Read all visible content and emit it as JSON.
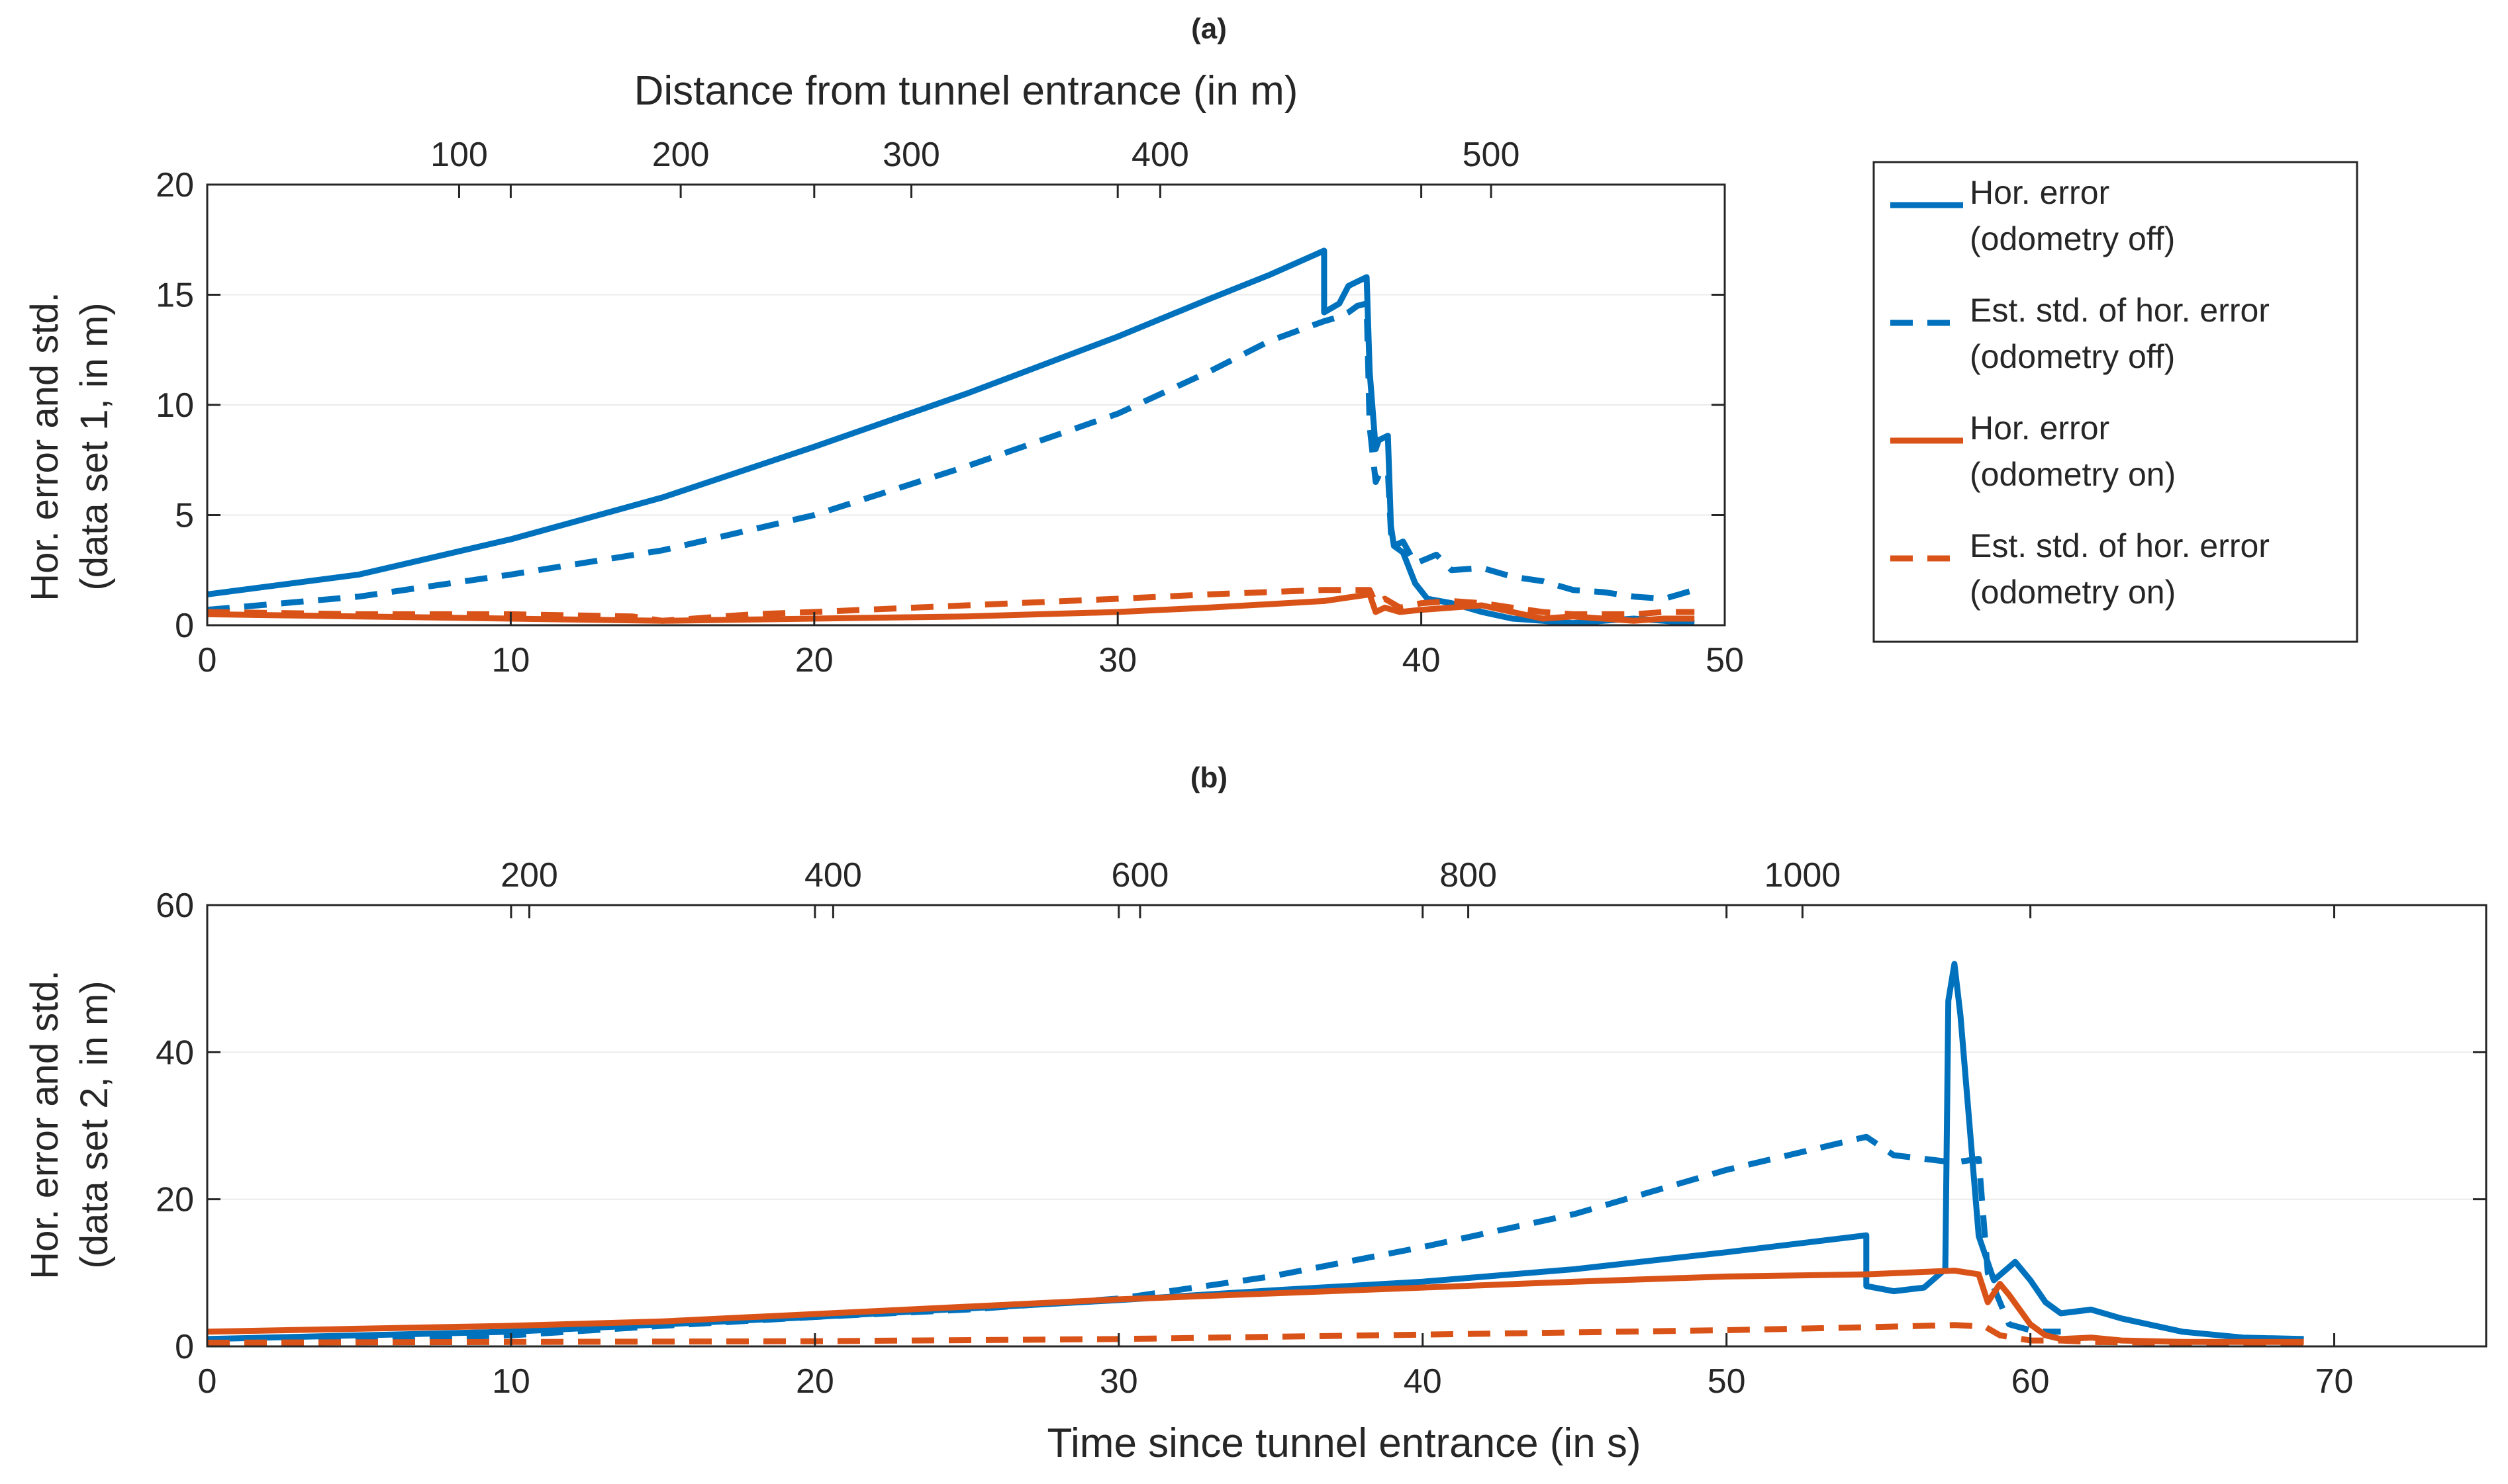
{
  "colors": {
    "blue": "#0072BD",
    "orange": "#D95319",
    "grid": "#ebebeb",
    "axis": "#262626"
  },
  "legend": {
    "entries": [
      {
        "series": "hor_off",
        "line1": "Hor. error",
        "line2": "(odometry off)",
        "color": "#0072BD",
        "dash": false
      },
      {
        "series": "std_off",
        "line1": "Est. std. of hor. error",
        "line2": "(odometry off)",
        "color": "#0072BD",
        "dash": true
      },
      {
        "series": "hor_on",
        "line1": "Hor. error",
        "line2": "(odometry on)",
        "color": "#D95319",
        "dash": false
      },
      {
        "series": "std_on",
        "line1": "Est. std. of hor. error",
        "line2": "(odometry on)",
        "color": "#D95319",
        "dash": true
      }
    ]
  },
  "chart_data": [
    {
      "type": "line",
      "panel": "a",
      "title": "(a)",
      "xlabel": "",
      "ylabel": [
        "Hor. error and std.",
        "(data set 1, in m)"
      ],
      "top_xlabel": "Distance from tunnel entrance (in m)",
      "xlim": [
        0,
        50
      ],
      "ylim": [
        0,
        20
      ],
      "xticks": [
        0,
        10,
        20,
        30,
        40,
        50
      ],
      "yticks": [
        0,
        5,
        10,
        15,
        20
      ],
      "top_ticks": [
        {
          "label": "100",
          "x": 8.3
        },
        {
          "label": "200",
          "x": 15.6
        },
        {
          "label": "300",
          "x": 23.2
        },
        {
          "label": "400",
          "x": 31.4
        },
        {
          "label": "500",
          "x": 42.3
        }
      ],
      "series": [
        {
          "name": "Hor. error (odometry off)",
          "key": "hor_off",
          "x": [
            0,
            5,
            10,
            15,
            20,
            25,
            30,
            33,
            35,
            36.8,
            36.8,
            37.3,
            37.6,
            37.9,
            38.2,
            38.3,
            38.5,
            38.6,
            38.9,
            39.0,
            39.1,
            39.4,
            39.8,
            40.2,
            41.0,
            42.0,
            43.0,
            44.0,
            45.0,
            46.0,
            47.0,
            48.0,
            49.0
          ],
          "y": [
            1.4,
            2.3,
            3.9,
            5.8,
            8.1,
            10.5,
            13.1,
            14.8,
            15.9,
            17.0,
            14.2,
            14.6,
            15.4,
            15.6,
            15.8,
            11.5,
            8.0,
            8.4,
            8.6,
            4.5,
            3.6,
            3.3,
            1.9,
            1.2,
            1.0,
            0.6,
            0.3,
            0.2,
            0.1,
            0.2,
            0.3,
            0.2,
            0.1
          ]
        },
        {
          "name": "Est. std. of hor. error (odometry off)",
          "key": "std_off",
          "x": [
            0,
            5,
            10,
            15,
            20,
            25,
            30,
            33,
            35,
            36.8,
            37.3,
            37.6,
            37.9,
            38.2,
            38.3,
            38.5,
            38.6,
            38.9,
            39.0,
            39.1,
            39.4,
            39.8,
            40.5,
            41.0,
            42.0,
            43.0,
            44.0,
            45.0,
            46.0,
            47.0,
            48.0,
            48.5,
            49.0
          ],
          "y": [
            0.7,
            1.3,
            2.3,
            3.4,
            5.0,
            7.2,
            9.6,
            11.5,
            12.9,
            13.8,
            14.0,
            14.2,
            14.5,
            14.6,
            9.0,
            6.5,
            6.8,
            7.0,
            4.2,
            3.6,
            3.8,
            2.8,
            3.2,
            2.5,
            2.6,
            2.2,
            2.0,
            1.6,
            1.5,
            1.3,
            1.2,
            1.4,
            1.6
          ]
        },
        {
          "name": "Hor. error (odometry on)",
          "key": "hor_on",
          "x": [
            0,
            5,
            10,
            15,
            20,
            25,
            30,
            33,
            36.8,
            38.3,
            38.5,
            38.8,
            39.3,
            40.0,
            41.0,
            42.0,
            43.0,
            44.0,
            45.0,
            46.0,
            47.0,
            48.0,
            49.0
          ],
          "y": [
            0.5,
            0.4,
            0.3,
            0.2,
            0.3,
            0.4,
            0.6,
            0.8,
            1.1,
            1.4,
            0.6,
            0.8,
            0.6,
            0.7,
            0.8,
            0.9,
            0.6,
            0.3,
            0.4,
            0.3,
            0.2,
            0.3,
            0.3
          ]
        },
        {
          "name": "Est. std. of hor. error (odometry on)",
          "key": "std_on",
          "x": [
            0,
            5,
            10,
            14,
            15,
            18,
            20,
            25,
            30,
            33,
            36.8,
            38.3,
            38.5,
            38.8,
            39.3,
            40.0,
            41.0,
            42.0,
            43.0,
            44.0,
            45.0,
            46.0,
            47.0,
            48.0,
            49.0
          ],
          "y": [
            0.6,
            0.5,
            0.5,
            0.4,
            0.2,
            0.5,
            0.6,
            0.9,
            1.2,
            1.4,
            1.6,
            1.6,
            1.0,
            1.2,
            0.8,
            1.0,
            1.1,
            1.0,
            0.8,
            0.6,
            0.5,
            0.5,
            0.5,
            0.6,
            0.6
          ]
        }
      ]
    },
    {
      "type": "line",
      "panel": "b",
      "title": "(b)",
      "xlabel": "Time since tunnel entrance (in s)",
      "ylabel": [
        "Hor. error and std.",
        "(data set 2, in m)"
      ],
      "top_xlabel": "",
      "xlim": [
        0,
        75
      ],
      "ylim": [
        0,
        60
      ],
      "xticks": [
        0,
        10,
        20,
        30,
        40,
        50,
        60,
        70
      ],
      "yticks": [
        0,
        20,
        40,
        60
      ],
      "top_ticks": [
        {
          "label": "200",
          "x": 10.6
        },
        {
          "label": "400",
          "x": 20.6
        },
        {
          "label": "600",
          "x": 30.7
        },
        {
          "label": "800",
          "x": 41.5
        },
        {
          "label": "1000",
          "x": 52.5
        }
      ],
      "series": [
        {
          "name": "Hor. error (odometry off)",
          "key": "hor_off",
          "x": [
            0,
            10,
            20,
            30,
            35,
            40,
            45,
            50,
            54.6,
            54.6,
            55.5,
            56.5,
            57.2,
            57.3,
            57.5,
            57.7,
            58.0,
            58.3,
            58.8,
            59.5,
            60.0,
            60.5,
            61.0,
            62.0,
            63.0,
            65.0,
            67.0,
            69.0
          ],
          "y": [
            1.0,
            2.0,
            4.0,
            6.3,
            7.6,
            8.8,
            10.5,
            12.8,
            15.1,
            8.2,
            7.5,
            8.0,
            10.5,
            47.0,
            52.0,
            45.0,
            30.0,
            15.0,
            9.0,
            11.5,
            9.0,
            6.0,
            4.5,
            5.0,
            3.8,
            2.0,
            1.2,
            1.0
          ]
        },
        {
          "name": "Est. std. of hor. error (odometry off)",
          "key": "std_off",
          "x": [
            0,
            10,
            15,
            20,
            25,
            30,
            35,
            40,
            45,
            50,
            54.6,
            55.5,
            56.5,
            57.5,
            58.3,
            58.6,
            58.8,
            59.3,
            60.0,
            60.5,
            61.0
          ],
          "y": [
            0.3,
            1.5,
            2.8,
            4.0,
            5.0,
            6.5,
            9.5,
            13.5,
            18.0,
            24.0,
            28.5,
            26.0,
            25.5,
            25.0,
            25.5,
            10.0,
            8.0,
            3.0,
            2.2,
            2.0,
            2.0
          ]
        },
        {
          "name": "Hor. error (odometry on)",
          "key": "hor_on",
          "x": [
            0,
            10,
            15,
            20,
            25,
            30,
            35,
            40,
            45,
            50,
            54.6,
            57.5,
            58.3,
            58.6,
            59.0,
            59.3,
            60.0,
            60.5,
            61.0,
            62.0,
            63.0,
            65.0,
            67.0,
            69.0
          ],
          "y": [
            2.0,
            2.8,
            3.4,
            4.4,
            5.4,
            6.4,
            7.2,
            8.0,
            8.8,
            9.5,
            9.8,
            10.3,
            9.8,
            6.0,
            8.5,
            7.0,
            3.0,
            1.5,
            1.0,
            1.2,
            0.8,
            0.6,
            0.6,
            0.6
          ]
        },
        {
          "name": "Est. std. of hor. error (odometry on)",
          "key": "std_on",
          "x": [
            0,
            10,
            20,
            30,
            40,
            50,
            54.6,
            57.5,
            58.5,
            59.0,
            60.0,
            61.0,
            62.0,
            65.0,
            69.0
          ],
          "y": [
            0.5,
            0.6,
            0.7,
            1.0,
            1.6,
            2.2,
            2.6,
            2.9,
            2.7,
            1.5,
            0.8,
            0.8,
            0.6,
            0.5,
            0.5
          ]
        }
      ]
    }
  ]
}
